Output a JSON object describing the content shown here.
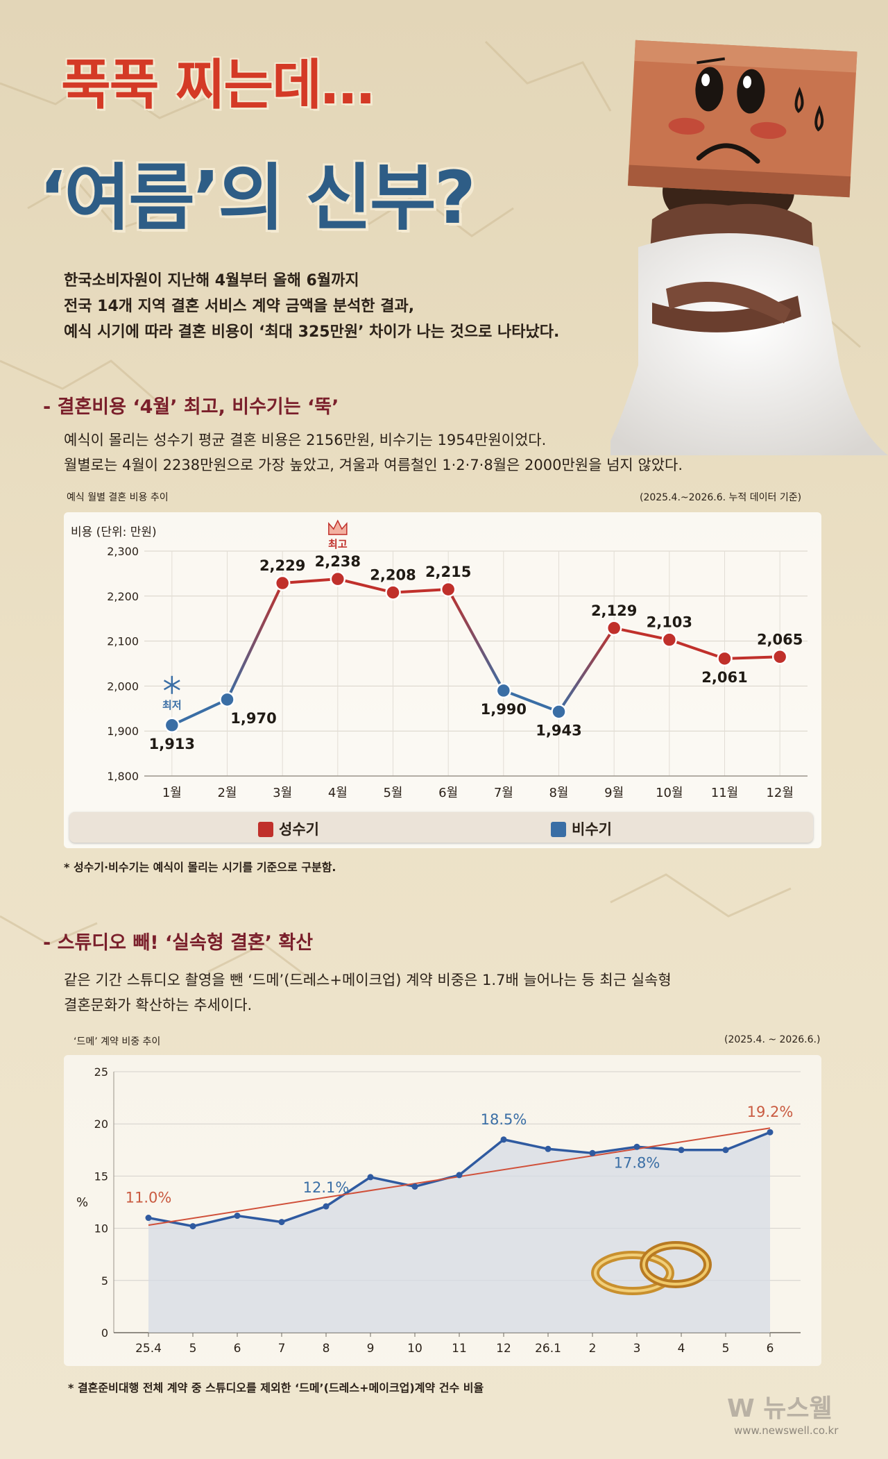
{
  "title": {
    "line1": "푹푹 찌는데…",
    "line2": "‘여름’의 신부?"
  },
  "intro": [
    "한국소비자원이 지난해 4월부터 올해 6월까지",
    "전국 14개 지역 결혼 서비스 계약 금액을 분석한 결과,",
    "예식 시기에 따라 결혼 비용이 ‘최대 325만원’ 차이가 나는 것으로 나타났다."
  ],
  "section1": {
    "heading": "- 결혼비용 ‘4월’ 최고, 비수기는 ‘뚝’",
    "para": [
      "예식이 몰리는 성수기 평균 결혼 비용은 2156만원, 비수기는 1954만원이었다.",
      "월별로는 4월이 2238만원으로 가장 높았고, 겨울과 여름철인 1·2·7·8월은 2000만원을 넘지 않았다."
    ],
    "chart_caption": "예식 월별 결혼 비용 추이",
    "chart_source": "(2025.4.~2026.6. 누적 데이터 기준)",
    "note": "* 성수기·비수기는 예식이 몰리는 시기를 기준으로 구분함."
  },
  "section2": {
    "heading": "- 스튜디오 빼! ‘실속형 결혼’ 확산",
    "para": [
      "같은 기간 스튜디오 촬영을 뺀 ‘드메’(드레스+메이크업) 계약 비중은 1.7배 늘어나는 등 최근 실속형",
      "결혼문화가 확산하는 추세이다."
    ],
    "chart_caption": "‘드메’ 계약 비중 추이",
    "chart_source": "(2025.4. ~ 2026.6.)",
    "note": "* 결혼준비대행 전체 계약 중 스튜디오를 제외한 ‘드메’(드레스+메이크업)계약 건수 비율"
  },
  "logo": {
    "name": "뉴스웰",
    "url": "www.newswell.co.kr"
  },
  "colors": {
    "peak": "#c0302b",
    "off": "#3a6ea5",
    "title_red": "#d43a26",
    "title_blue": "#2e5d86",
    "heading": "#7a1f2b"
  },
  "chart_data": [
    {
      "type": "line",
      "ylabel": "비용 (단위: 만원)",
      "ylim": [
        1800,
        2300
      ],
      "yticks": [
        1800,
        1900,
        2000,
        2100,
        2200,
        2300
      ],
      "yticklabels": [
        "1,800",
        "1,900",
        "2,000",
        "2,100",
        "2,200",
        "2,300"
      ],
      "categories": [
        "1월",
        "2월",
        "3월",
        "4월",
        "5월",
        "6월",
        "7월",
        "8월",
        "9월",
        "10월",
        "11월",
        "12월"
      ],
      "values": [
        1913,
        1970,
        2229,
        2238,
        2208,
        2215,
        1990,
        1943,
        2129,
        2103,
        2061,
        2065
      ],
      "value_labels": [
        "1,913",
        "1,970",
        "2,229",
        "2,238",
        "2,208",
        "2,215",
        "1,990",
        "1,943",
        "2,129",
        "2,103",
        "2,061",
        "2,065"
      ],
      "season": [
        "off",
        "off",
        "peak",
        "peak",
        "peak",
        "peak",
        "off",
        "off",
        "peak",
        "peak",
        "peak",
        "peak"
      ],
      "legend": [
        {
          "key": "peak",
          "label": "성수기"
        },
        {
          "key": "off",
          "label": "비수기"
        }
      ],
      "annotations": {
        "max_label": "최고",
        "max_index": 3,
        "min_label": "최저",
        "min_index": 0
      },
      "grid": true
    },
    {
      "type": "area",
      "ylabel": "%",
      "ylim": [
        0,
        25
      ],
      "yticks": [
        0,
        5,
        10,
        15,
        20,
        25
      ],
      "categories": [
        "25.4",
        "5",
        "6",
        "7",
        "8",
        "9",
        "10",
        "11",
        "12",
        "26.1",
        "2",
        "3",
        "4",
        "5",
        "6"
      ],
      "values": [
        11.0,
        10.2,
        11.2,
        10.6,
        12.1,
        14.9,
        14.0,
        15.1,
        18.5,
        17.6,
        17.2,
        17.8,
        17.5,
        17.5,
        19.2
      ],
      "labels": [
        {
          "index": 0,
          "text": "11.0%",
          "color": "#c95a40"
        },
        {
          "index": 4,
          "text": "12.1%",
          "color": "#3a6ea5"
        },
        {
          "index": 8,
          "text": "18.5%",
          "color": "#3a6ea5"
        },
        {
          "index": 11,
          "text": "17.8%",
          "color": "#3a6ea5"
        },
        {
          "index": 14,
          "text": "19.2%",
          "color": "#c95a40"
        }
      ],
      "trendline": [
        10.3,
        19.6
      ],
      "grid": true
    }
  ]
}
